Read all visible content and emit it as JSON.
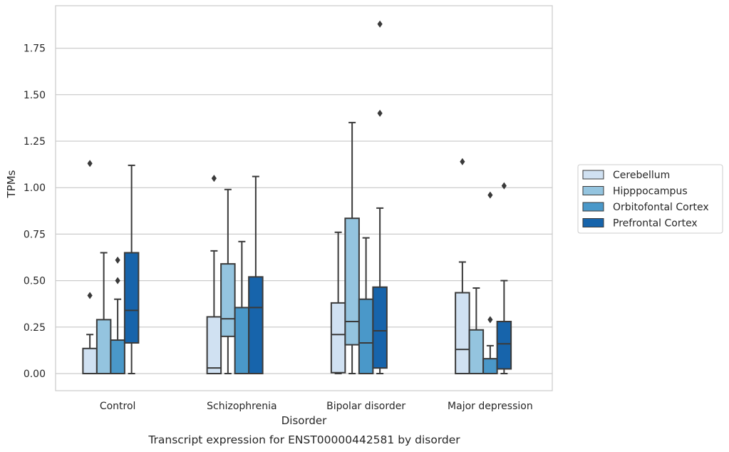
{
  "chart_data": {
    "type": "box",
    "title": "",
    "caption": "Transcript expression for ENST00000442581 by disorder",
    "xlabel": "Disorder",
    "ylabel": "TPMs",
    "ylim": [
      -0.09,
      1.97
    ],
    "yticks": [
      0.0,
      0.25,
      0.5,
      0.75,
      1.0,
      1.25,
      1.5,
      1.75
    ],
    "ytick_labels": [
      "0.00",
      "0.25",
      "0.50",
      "0.75",
      "1.00",
      "1.25",
      "1.50",
      "1.75"
    ],
    "grid": "horizontal",
    "legend_position": "right",
    "categories": [
      "Control",
      "Schizophrenia",
      "Bipolar disorder",
      "Major depression"
    ],
    "series": [
      {
        "name": "Cerebellum",
        "color": "#d0e1f2",
        "boxes": [
          {
            "whisker_low": 0.0,
            "q1": 0.0,
            "median": 0.0,
            "q3": 0.135,
            "whisker_high": 0.21,
            "outliers": [
              0.42,
              1.13
            ]
          },
          {
            "whisker_low": 0.0,
            "q1": 0.0,
            "median": 0.03,
            "q3": 0.305,
            "whisker_high": 0.66,
            "outliers": [
              1.05
            ]
          },
          {
            "whisker_low": 0.0,
            "q1": 0.005,
            "median": 0.21,
            "q3": 0.38,
            "whisker_high": 0.76,
            "outliers": []
          },
          {
            "whisker_low": 0.0,
            "q1": 0.0,
            "median": 0.13,
            "q3": 0.435,
            "whisker_high": 0.6,
            "outliers": [
              1.14
            ]
          }
        ]
      },
      {
        "name": "Hipppocampus",
        "color": "#94c4df",
        "boxes": [
          {
            "whisker_low": 0.0,
            "q1": 0.0,
            "median": 0.0,
            "q3": 0.29,
            "whisker_high": 0.65,
            "outliers": []
          },
          {
            "whisker_low": 0.0,
            "q1": 0.2,
            "median": 0.295,
            "q3": 0.59,
            "whisker_high": 0.99,
            "outliers": []
          },
          {
            "whisker_low": 0.0,
            "q1": 0.155,
            "median": 0.28,
            "q3": 0.835,
            "whisker_high": 1.35,
            "outliers": []
          },
          {
            "whisker_low": 0.0,
            "q1": 0.0,
            "median": 0.0,
            "q3": 0.235,
            "whisker_high": 0.46,
            "outliers": []
          }
        ]
      },
      {
        "name": "Orbitofontal Cortex",
        "color": "#4a98c9",
        "boxes": [
          {
            "whisker_low": 0.0,
            "q1": 0.0,
            "median": 0.0,
            "q3": 0.18,
            "whisker_high": 0.4,
            "outliers": [
              0.5,
              0.61
            ]
          },
          {
            "whisker_low": 0.0,
            "q1": 0.0,
            "median": 0.0,
            "q3": 0.355,
            "whisker_high": 0.71,
            "outliers": []
          },
          {
            "whisker_low": 0.0,
            "q1": 0.0,
            "median": 0.165,
            "q3": 0.4,
            "whisker_high": 0.73,
            "outliers": []
          },
          {
            "whisker_low": 0.0,
            "q1": 0.0,
            "median": 0.0,
            "q3": 0.08,
            "whisker_high": 0.15,
            "outliers": [
              0.29,
              0.96
            ]
          }
        ]
      },
      {
        "name": "Prefrontal Cortex",
        "color": "#1764ab",
        "boxes": [
          {
            "whisker_low": 0.0,
            "q1": 0.165,
            "median": 0.34,
            "q3": 0.65,
            "whisker_high": 1.12,
            "outliers": []
          },
          {
            "whisker_low": 0.0,
            "q1": 0.0,
            "median": 0.355,
            "q3": 0.52,
            "whisker_high": 1.06,
            "outliers": []
          },
          {
            "whisker_low": 0.0,
            "q1": 0.03,
            "median": 0.23,
            "q3": 0.465,
            "whisker_high": 0.89,
            "outliers": [
              1.4,
              1.88
            ]
          },
          {
            "whisker_low": 0.0,
            "q1": 0.025,
            "median": 0.16,
            "q3": 0.28,
            "whisker_high": 0.5,
            "outliers": [
              1.01
            ]
          }
        ]
      }
    ]
  }
}
